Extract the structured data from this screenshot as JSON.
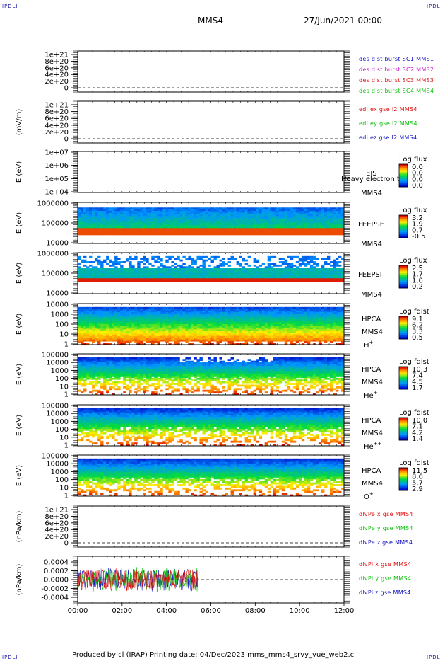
{
  "header": {
    "corner_tl": "IPDLI",
    "corner_tr": "IPDLI",
    "corner_bl": "IPDLI",
    "corner_br": "IPDLI",
    "spacecraft": "MMS4",
    "datetime": "27/Jun/2021 00:00"
  },
  "footer": {
    "text": "Produced by cl (IRAP)    Printing date: 04/Dec/2023    mms_mms4_srvy_vue_web2.cl"
  },
  "colors": {
    "red": "#e01010",
    "green": "#10c010",
    "blue": "#1010c0",
    "magenta": "#d010d0"
  },
  "chart_data": [
    {
      "type": "line",
      "id": "p1",
      "ylabel": "",
      "ticks": [
        "1e+21",
        "8e+20",
        "6e+20",
        "4e+20",
        "2e+20",
        "0"
      ],
      "zero_line": true,
      "legend": [
        {
          "text": "des dist burst SC1 MMS1",
          "color": "#1010c0"
        },
        {
          "text": "des dist burst SC2 MMS2",
          "color": "#d010d0"
        },
        {
          "text": "des dist burst SC3 MMS3",
          "color": "#e01010"
        },
        {
          "text": "des dist burst SC4 MMS4",
          "color": "#10c010"
        }
      ]
    },
    {
      "type": "line",
      "id": "p2",
      "ylabel": "(mV/m)",
      "ticks": [
        "1e+21",
        "8e+20",
        "6e+20",
        "4e+20",
        "2e+20",
        "0"
      ],
      "zero_line": true,
      "legend": [
        {
          "text": "edi ex gse l2 MMS4",
          "color": "#e01010"
        },
        {
          "text": "edi ey gse l2 MMS4",
          "color": "#10c010"
        },
        {
          "text": "edi ez gse l2 MMS4",
          "color": "#1010c0"
        }
      ]
    },
    {
      "type": "heatmap",
      "id": "p3",
      "ylabel": "E (eV)",
      "ticks": [
        "1e+07",
        "1e+06",
        "1e+05",
        "1e+04"
      ],
      "instrument": "EIS",
      "extra": "Heavy electron to",
      "sc": "MMS4",
      "colorbar_title": "Log flux",
      "colorbar_ticks": [
        "0.0",
        "0.0",
        "0.0",
        "0.0"
      ]
    },
    {
      "type": "heatmap",
      "id": "p4",
      "ylabel": "E (eV)",
      "ticks": [
        "1000000",
        "100000",
        "10000"
      ],
      "instrument": "FEEPSE",
      "sc": "MMS4",
      "colorbar_title": "Log flux",
      "colorbar_ticks": [
        "3.2",
        "1.9",
        "0.7",
        "-0.5"
      ]
    },
    {
      "type": "heatmap",
      "id": "p5",
      "ylabel": "E (eV)",
      "ticks": [
        "1000000",
        "100000",
        "10000"
      ],
      "instrument": "FEEPSI",
      "sc": "MMS4",
      "colorbar_title": "Log flux",
      "colorbar_ticks": [
        "2.5",
        "1.7",
        "1.0",
        "0.2"
      ]
    },
    {
      "type": "heatmap",
      "id": "p6",
      "ylabel": "E (eV)",
      "ticks": [
        "10000",
        "1000",
        "100",
        "10",
        "1"
      ],
      "instrument": "HPCA",
      "sc": "MMS4",
      "species": "H",
      "species_sup": "+",
      "colorbar_title": "Log fdist",
      "colorbar_ticks": [
        "9.1",
        "6.2",
        "3.3",
        "0.5"
      ]
    },
    {
      "type": "heatmap",
      "id": "p7",
      "ylabel": "E (eV)",
      "ticks": [
        "100000",
        "10000",
        "1000",
        "100",
        "10",
        "1"
      ],
      "instrument": "HPCA",
      "sc": "MMS4",
      "species": "He",
      "species_sup": "+",
      "colorbar_title": "Log fdist",
      "colorbar_ticks": [
        "10.3",
        "7.4",
        "4.5",
        "1.7"
      ]
    },
    {
      "type": "heatmap",
      "id": "p8",
      "ylabel": "E (eV)",
      "ticks": [
        "100000",
        "10000",
        "1000",
        "100",
        "10",
        "1"
      ],
      "instrument": "HPCA",
      "sc": "MMS4",
      "species": "He",
      "species_sup": "++",
      "colorbar_title": "Log fdist",
      "colorbar_ticks": [
        "10.0",
        "7.1",
        "4.2",
        "1.4"
      ]
    },
    {
      "type": "heatmap",
      "id": "p9",
      "ylabel": "E (eV)",
      "ticks": [
        "100000",
        "10000",
        "1000",
        "100",
        "10",
        "1"
      ],
      "instrument": "HPCA",
      "sc": "MMS4",
      "species": "O",
      "species_sup": "+",
      "colorbar_title": "Log fdist",
      "colorbar_ticks": [
        "11.5",
        "8.6",
        "5.7",
        "2.9"
      ]
    },
    {
      "type": "line",
      "id": "p10",
      "ylabel": "(nPa/km)",
      "ticks": [
        "1e+21",
        "8e+20",
        "6e+20",
        "4e+20",
        "2e+20",
        "0"
      ],
      "zero_line": true,
      "legend": [
        {
          "text": "dlvPe x gse MMS4",
          "color": "#e01010"
        },
        {
          "text": "dlvPe y gse MMS4",
          "color": "#10c010"
        },
        {
          "text": "dlvPe z gse MMS4",
          "color": "#1010c0"
        }
      ]
    },
    {
      "type": "line",
      "id": "p11",
      "ylabel": "(nPa/km)",
      "ticks": [
        "0.0004",
        "0.0002",
        "0.0000",
        "-0.0002",
        "-0.0004"
      ],
      "ylim": [
        -0.0004,
        0.0004
      ],
      "data_end": "05:24",
      "zero_line": true,
      "legend": [
        {
          "text": "dlvPi x gse MMS4",
          "color": "#e01010"
        },
        {
          "text": "dlvPi y gse MMS4",
          "color": "#10c010"
        },
        {
          "text": "dlvPi z gse MMS4",
          "color": "#1010c0"
        }
      ]
    }
  ],
  "xaxis": {
    "ticks": [
      "00:00",
      "02:00",
      "04:00",
      "06:00",
      "08:00",
      "10:00",
      "12:00"
    ]
  }
}
